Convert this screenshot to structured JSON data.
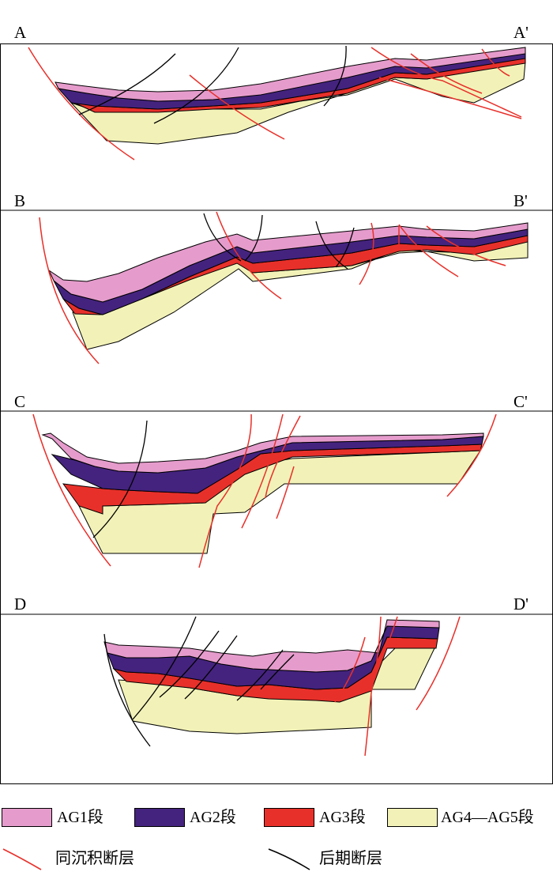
{
  "sections": [
    {
      "id": "A",
      "left_label": "A",
      "right_label": "A'"
    },
    {
      "id": "B",
      "left_label": "B",
      "right_label": "B'"
    },
    {
      "id": "C",
      "left_label": "C",
      "right_label": "C'"
    },
    {
      "id": "D",
      "left_label": "D",
      "right_label": "D'"
    }
  ],
  "legend": {
    "units": [
      {
        "label": "AG1段",
        "color": "#e59ccc"
      },
      {
        "label": "AG2段",
        "color": "#44237e"
      },
      {
        "label": "AG3段",
        "color": "#e8302a"
      },
      {
        "label": "AG4—AG5段",
        "color": "#f2f2b8"
      }
    ],
    "faults": [
      {
        "label": "同沉积断层",
        "color": "#e8302a"
      },
      {
        "label": "后期断层",
        "color": "#000000"
      }
    ]
  }
}
